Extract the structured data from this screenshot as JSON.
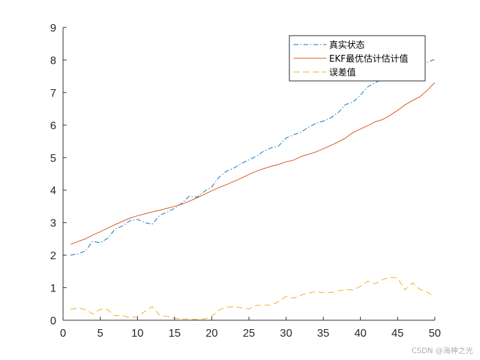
{
  "chart_data": {
    "type": "line",
    "xlim": [
      0,
      50
    ],
    "ylim": [
      0,
      9
    ],
    "x_ticks": [
      0,
      5,
      10,
      15,
      20,
      25,
      30,
      35,
      40,
      45,
      50
    ],
    "y_ticks": [
      0,
      1,
      2,
      3,
      4,
      5,
      6,
      7,
      8,
      9
    ],
    "legend_position": "top-right",
    "grid": false,
    "x": [
      1,
      2,
      3,
      4,
      5,
      6,
      7,
      8,
      9,
      10,
      11,
      12,
      13,
      14,
      15,
      16,
      17,
      18,
      19,
      20,
      21,
      22,
      23,
      24,
      25,
      26,
      27,
      28,
      29,
      30,
      31,
      32,
      33,
      34,
      35,
      36,
      37,
      38,
      39,
      40,
      41,
      42,
      43,
      44,
      45,
      46,
      47,
      48,
      49,
      50
    ],
    "series": [
      {
        "name": "真实状态",
        "color": "#0072BD",
        "style": "dashdot",
        "values": [
          2.0,
          2.04,
          2.13,
          2.43,
          2.38,
          2.52,
          2.8,
          2.9,
          3.06,
          3.1,
          3.0,
          2.95,
          3.23,
          3.32,
          3.44,
          3.6,
          3.82,
          3.78,
          3.96,
          4.1,
          4.4,
          4.58,
          4.68,
          4.82,
          4.93,
          5.04,
          5.2,
          5.3,
          5.36,
          5.6,
          5.7,
          5.78,
          5.93,
          6.05,
          6.12,
          6.22,
          6.38,
          6.63,
          6.7,
          6.92,
          7.18,
          7.3,
          7.42,
          7.62,
          7.75,
          7.85,
          7.9,
          7.92,
          7.93,
          8.02
        ]
      },
      {
        "name": "EKF最优估计估计值",
        "color": "#D95319",
        "style": "solid",
        "values": [
          2.33,
          2.42,
          2.5,
          2.62,
          2.72,
          2.83,
          2.94,
          3.04,
          3.14,
          3.21,
          3.27,
          3.33,
          3.38,
          3.44,
          3.5,
          3.57,
          3.66,
          3.76,
          3.87,
          3.98,
          4.08,
          4.17,
          4.27,
          4.37,
          4.48,
          4.58,
          4.66,
          4.73,
          4.79,
          4.87,
          4.92,
          5.03,
          5.1,
          5.17,
          5.27,
          5.37,
          5.48,
          5.6,
          5.77,
          5.88,
          5.98,
          6.1,
          6.17,
          6.3,
          6.45,
          6.62,
          6.75,
          6.87,
          7.07,
          7.3
        ]
      },
      {
        "name": "误差值",
        "color": "#EDB120",
        "style": "dashed",
        "values": [
          0.33,
          0.38,
          0.33,
          0.19,
          0.34,
          0.32,
          0.14,
          0.14,
          0.08,
          0.11,
          0.27,
          0.42,
          0.15,
          0.12,
          0.06,
          0.03,
          0.04,
          0.02,
          0.04,
          0.12,
          0.32,
          0.4,
          0.41,
          0.38,
          0.35,
          0.46,
          0.46,
          0.47,
          0.57,
          0.73,
          0.68,
          0.77,
          0.83,
          0.88,
          0.85,
          0.85,
          0.9,
          0.94,
          0.93,
          1.04,
          1.2,
          1.12,
          1.25,
          1.32,
          1.3,
          0.93,
          1.15,
          0.95,
          0.86,
          0.72
        ]
      }
    ]
  },
  "watermark": "CSDN @海神之光"
}
